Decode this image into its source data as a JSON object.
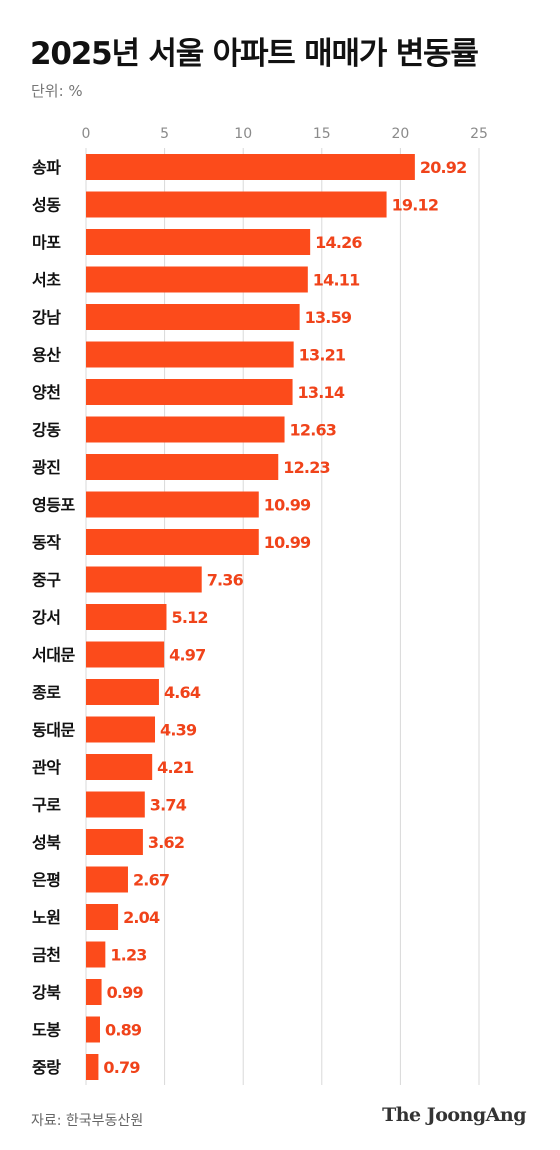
{
  "title": "2025년 서울 아파트 매매가 변동률",
  "unit_label": "단위: %",
  "source": "자료: 한국부동산원",
  "brand": "The JoongAng",
  "colors": {
    "bar": "#FC4B1B",
    "label": "#F0431A",
    "grid": "#d9d9d9",
    "tick": "#8a8a8a"
  },
  "chart_data": {
    "type": "bar",
    "orientation": "horizontal",
    "xlim": [
      0,
      25
    ],
    "xticks": [
      "0",
      "5",
      "10",
      "15",
      "20",
      "25"
    ],
    "grid": true,
    "categories": [
      "송파",
      "성동",
      "마포",
      "서초",
      "강남",
      "용산",
      "양천",
      "강동",
      "광진",
      "영등포",
      "동작",
      "중구",
      "강서",
      "서대문",
      "종로",
      "동대문",
      "관악",
      "구로",
      "성북",
      "은평",
      "노원",
      "금천",
      "강북",
      "도봉",
      "중랑"
    ],
    "values": [
      20.92,
      19.12,
      14.26,
      14.11,
      13.59,
      13.21,
      13.14,
      12.63,
      12.23,
      10.99,
      10.99,
      7.36,
      5.12,
      4.97,
      4.64,
      4.39,
      4.21,
      3.74,
      3.62,
      2.67,
      2.04,
      1.23,
      0.99,
      0.89,
      0.79
    ],
    "value_labels": [
      "20.92",
      "19.12",
      "14.26",
      "14.11",
      "13.59",
      "13.21",
      "13.14",
      "12.63",
      "12.23",
      "10.99",
      "10.99",
      "7.36",
      "5.12",
      "4.97",
      "4.64",
      "4.39",
      "4.21",
      "3.74",
      "3.62",
      "2.67",
      "2.04",
      "1.23",
      "0.99",
      "0.89",
      "0.79"
    ]
  }
}
